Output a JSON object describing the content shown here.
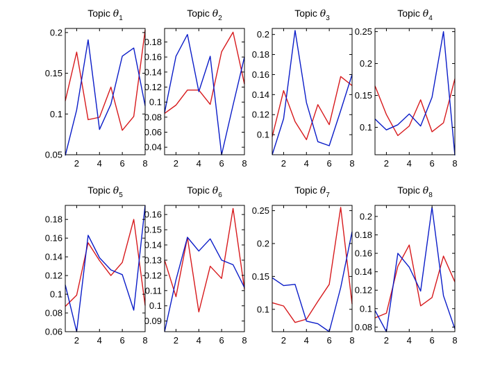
{
  "colors": {
    "series_a": "#d7191c",
    "series_b": "#0a1cc8"
  },
  "chart_data": [
    {
      "type": "line",
      "title_prefix": "Topic",
      "title_symbol": "θ",
      "title_sub": "1",
      "x": [
        1,
        2,
        3,
        4,
        5,
        6,
        7,
        8
      ],
      "xticks": [
        2,
        4,
        6,
        8
      ],
      "xlim": [
        1,
        8
      ],
      "ylim": [
        0.05,
        0.205
      ],
      "yticks": [
        0.05,
        0.1,
        0.15,
        0.2
      ],
      "yticklabels": [
        "0.05",
        "0.1",
        "0.15",
        "0.2"
      ],
      "series": [
        {
          "color": "series_a",
          "values": [
            0.116,
            0.176,
            0.093,
            0.096,
            0.133,
            0.08,
            0.097,
            0.203
          ]
        },
        {
          "color": "series_b",
          "values": [
            0.049,
            0.105,
            0.191,
            0.081,
            0.112,
            0.171,
            0.181,
            0.11
          ]
        }
      ]
    },
    {
      "type": "line",
      "title_prefix": "Topic",
      "title_symbol": "θ",
      "title_sub": "2",
      "x": [
        1,
        2,
        3,
        4,
        5,
        6,
        7,
        8
      ],
      "xticks": [
        2,
        4,
        6,
        8
      ],
      "xlim": [
        1,
        8
      ],
      "ylim": [
        0.03,
        0.198
      ],
      "yticks": [
        0.04,
        0.06,
        0.08,
        0.1,
        0.12,
        0.14,
        0.16,
        0.18
      ],
      "yticklabels": [
        "0.04",
        "0.06",
        "0.08",
        "0.1",
        "0.12",
        "0.14",
        "0.16",
        "0.18"
      ],
      "series": [
        {
          "color": "series_a",
          "values": [
            0.085,
            0.096,
            0.116,
            0.116,
            0.097,
            0.167,
            0.193,
            0.124
          ]
        },
        {
          "color": "series_b",
          "values": [
            0.086,
            0.161,
            0.19,
            0.114,
            0.161,
            0.03,
            0.096,
            0.16
          ]
        }
      ]
    },
    {
      "type": "line",
      "title_prefix": "Topic",
      "title_symbol": "θ",
      "title_sub": "3",
      "x": [
        1,
        2,
        3,
        4,
        5,
        6,
        7,
        8
      ],
      "xticks": [
        2,
        4,
        6,
        8
      ],
      "xlim": [
        1,
        8
      ],
      "ylim": [
        0.08,
        0.206
      ],
      "yticks": [
        0.1,
        0.12,
        0.14,
        0.16,
        0.18,
        0.2
      ],
      "yticklabels": [
        "0.1",
        "0.12",
        "0.14",
        "0.16",
        "0.18",
        "0.2"
      ],
      "series": [
        {
          "color": "series_a",
          "values": [
            0.098,
            0.144,
            0.113,
            0.095,
            0.13,
            0.11,
            0.158,
            0.149
          ]
        },
        {
          "color": "series_b",
          "values": [
            0.08,
            0.116,
            0.204,
            0.132,
            0.093,
            0.089,
            0.124,
            0.16
          ]
        }
      ]
    },
    {
      "type": "line",
      "title_prefix": "Topic",
      "title_symbol": "θ",
      "title_sub": "4",
      "x": [
        1,
        2,
        3,
        4,
        5,
        6,
        7,
        8
      ],
      "xticks": [
        2,
        4,
        6,
        8
      ],
      "xlim": [
        1,
        8
      ],
      "ylim": [
        0.057,
        0.255
      ],
      "yticks": [
        0.1,
        0.15,
        0.2,
        0.25
      ],
      "yticklabels": [
        "0.1",
        "0.15",
        "0.2",
        "0.25"
      ],
      "series": [
        {
          "color": "series_a",
          "values": [
            0.165,
            0.12,
            0.087,
            0.102,
            0.143,
            0.093,
            0.107,
            0.176
          ]
        },
        {
          "color": "series_b",
          "values": [
            0.113,
            0.096,
            0.104,
            0.121,
            0.102,
            0.147,
            0.25,
            0.056
          ]
        }
      ]
    },
    {
      "type": "line",
      "title_prefix": "Topic",
      "title_symbol": "θ",
      "title_sub": "5",
      "x": [
        1,
        2,
        3,
        4,
        5,
        6,
        7,
        8
      ],
      "xticks": [
        2,
        4,
        6,
        8
      ],
      "xlim": [
        1,
        8
      ],
      "ylim": [
        0.06,
        0.195
      ],
      "yticks": [
        0.06,
        0.08,
        0.1,
        0.12,
        0.14,
        0.16,
        0.18
      ],
      "yticklabels": [
        "0.06",
        "0.08",
        "0.1",
        "0.12",
        "0.14",
        "0.16",
        "0.18"
      ],
      "series": [
        {
          "color": "series_a",
          "values": [
            0.087,
            0.099,
            0.155,
            0.136,
            0.12,
            0.134,
            0.18,
            0.088
          ]
        },
        {
          "color": "series_b",
          "values": [
            0.11,
            0.06,
            0.163,
            0.139,
            0.126,
            0.121,
            0.083,
            0.195
          ]
        }
      ]
    },
    {
      "type": "line",
      "title_prefix": "Topic",
      "title_symbol": "θ",
      "title_sub": "6",
      "x": [
        1,
        2,
        3,
        4,
        5,
        6,
        7,
        8
      ],
      "xticks": [
        2,
        4,
        6,
        8
      ],
      "xlim": [
        1,
        8
      ],
      "ylim": [
        0.083,
        0.166
      ],
      "yticks": [
        0.09,
        0.1,
        0.11,
        0.12,
        0.13,
        0.14,
        0.15,
        0.16
      ],
      "yticklabels": [
        "0.09",
        "0.1",
        "0.11",
        "0.12",
        "0.13",
        "0.14",
        "0.15",
        "0.16"
      ],
      "series": [
        {
          "color": "series_a",
          "values": [
            0.13,
            0.106,
            0.145,
            0.096,
            0.126,
            0.118,
            0.164,
            0.111
          ]
        },
        {
          "color": "series_b",
          "values": [
            0.083,
            0.117,
            0.145,
            0.136,
            0.144,
            0.13,
            0.127,
            0.112
          ]
        }
      ]
    },
    {
      "type": "line",
      "title_prefix": "Topic",
      "title_symbol": "θ",
      "title_sub": "7",
      "x": [
        1,
        2,
        3,
        4,
        5,
        6,
        7,
        8
      ],
      "xticks": [
        2,
        4,
        6,
        8
      ],
      "xlim": [
        1,
        8
      ],
      "ylim": [
        0.066,
        0.258
      ],
      "yticks": [
        0.1,
        0.15,
        0.2,
        0.25
      ],
      "yticklabels": [
        "0.1",
        "0.15",
        "0.2",
        "0.25"
      ],
      "series": [
        {
          "color": "series_a",
          "values": [
            0.11,
            0.105,
            0.08,
            0.085,
            0.112,
            0.138,
            0.255,
            0.108
          ]
        },
        {
          "color": "series_b",
          "values": [
            0.148,
            0.136,
            0.138,
            0.082,
            0.078,
            0.066,
            0.133,
            0.218
          ]
        }
      ]
    },
    {
      "type": "line",
      "title_prefix": "Topic",
      "title_symbol": "θ",
      "title_sub": "8",
      "x": [
        1,
        2,
        3,
        4,
        5,
        6,
        7,
        8
      ],
      "xticks": [
        2,
        4,
        6,
        8
      ],
      "xlim": [
        1,
        8
      ],
      "ylim": [
        0.075,
        0.212
      ],
      "yticks": [
        0.08,
        0.1,
        0.12,
        0.14,
        0.16,
        0.18,
        0.2
      ],
      "yticklabels": [
        "0.08",
        "0.1",
        "0.12",
        "0.14",
        "0.16",
        "0.18",
        "0.2"
      ],
      "series": [
        {
          "color": "series_a",
          "values": [
            0.09,
            0.095,
            0.146,
            0.169,
            0.103,
            0.112,
            0.157,
            0.129
          ]
        },
        {
          "color": "series_b",
          "values": [
            0.098,
            0.075,
            0.16,
            0.145,
            0.119,
            0.21,
            0.114,
            0.078
          ]
        }
      ]
    }
  ]
}
